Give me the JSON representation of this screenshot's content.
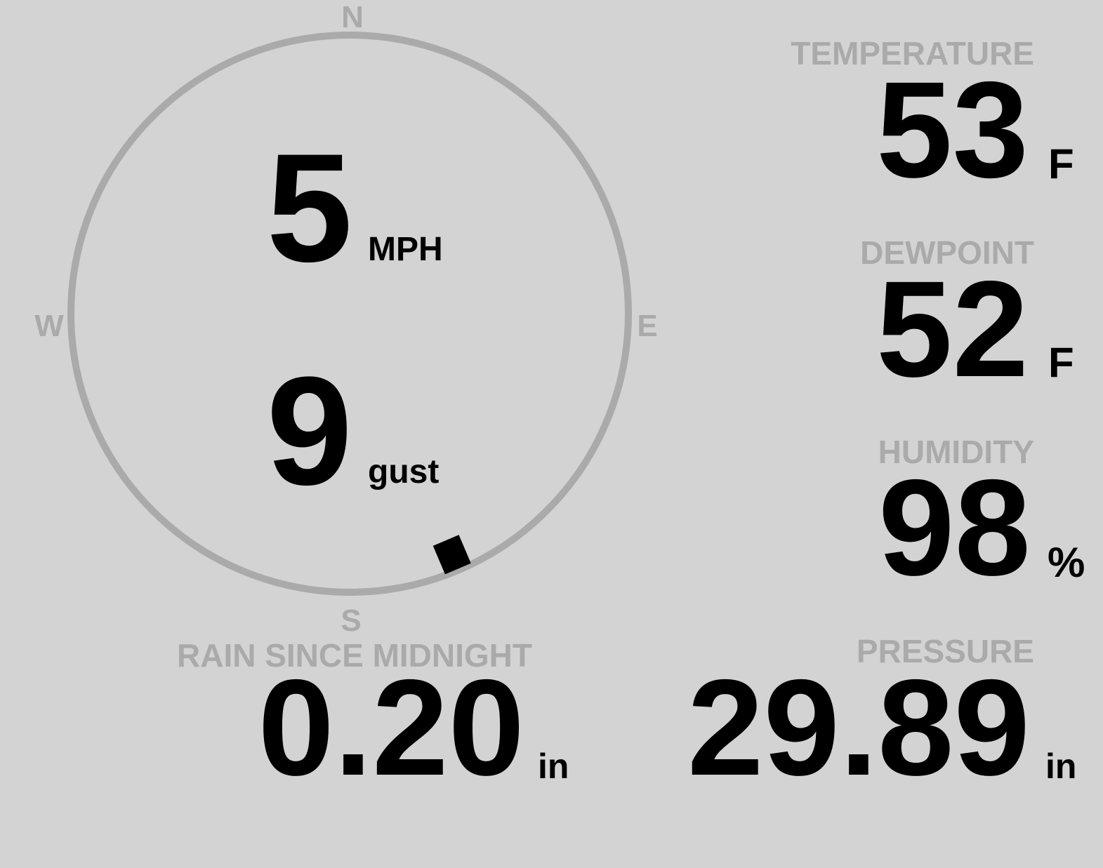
{
  "wind": {
    "speed": "5",
    "speed_unit": "MPH",
    "gust": "9",
    "gust_unit": "gust",
    "direction_degrees": 157,
    "compass": {
      "n": "N",
      "s": "S",
      "e": "E",
      "w": "W"
    }
  },
  "temperature": {
    "label": "TEMPERATURE",
    "value": "53",
    "unit": "F"
  },
  "dewpoint": {
    "label": "DEWPOINT",
    "value": "52",
    "unit": "F"
  },
  "humidity": {
    "label": "HUMIDITY",
    "value": "98",
    "unit": "%"
  },
  "rain": {
    "label": "RAIN SINCE MIDNIGHT",
    "value": "0.20",
    "unit": "in"
  },
  "pressure": {
    "label": "PRESSURE",
    "value": "29.89",
    "unit": "in"
  },
  "colors": {
    "background": "#d3d3d3",
    "label": "#aaaaaa",
    "value": "#000000",
    "dial": "#aaaaaa"
  }
}
